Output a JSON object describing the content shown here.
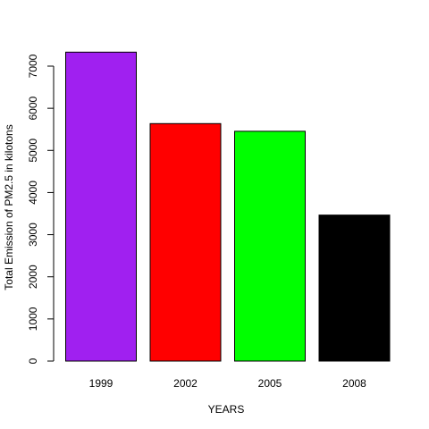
{
  "chart_data": {
    "type": "bar",
    "categories": [
      "1999",
      "2002",
      "2005",
      "2008"
    ],
    "values": [
      7332,
      5636,
      5454,
      3465
    ],
    "colors": [
      "#A020F0",
      "#FF0000",
      "#00FF00",
      "#000000"
    ],
    "xlabel": "YEARS",
    "ylabel": "Total Emission of PM2.5 in kilotons",
    "ylim": [
      0,
      7500
    ],
    "yticks": [
      0,
      1000,
      2000,
      3000,
      4000,
      5000,
      6000,
      7000
    ],
    "grid": false,
    "legend": "none"
  }
}
